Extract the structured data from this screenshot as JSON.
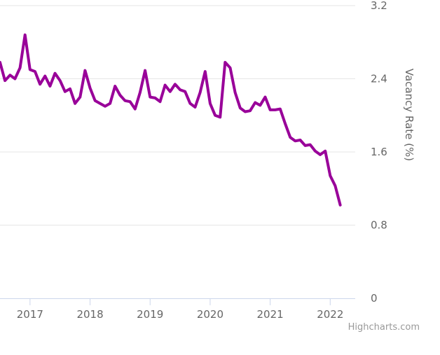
{
  "chart_data": {
    "type": "line",
    "ylabel": "Vacancy Rate (%)",
    "yticks": [
      "0",
      "0.8",
      "1.6",
      "2.4",
      "3.2"
    ],
    "ylim": [
      0,
      3.2
    ],
    "xticks": [
      "2017",
      "2018",
      "2019",
      "2020",
      "2021",
      "2022"
    ],
    "xlim": [
      "2016-07",
      "2022-06"
    ],
    "grid": true,
    "series": [
      {
        "color": "#990099",
        "x": [
          "2016-07",
          "2016-08",
          "2016-09",
          "2016-10",
          "2016-11",
          "2016-12",
          "2017-01",
          "2017-02",
          "2017-03",
          "2017-04",
          "2017-05",
          "2017-06",
          "2017-07",
          "2017-08",
          "2017-09",
          "2017-10",
          "2017-11",
          "2017-12",
          "2018-01",
          "2018-02",
          "2018-03",
          "2018-04",
          "2018-05",
          "2018-06",
          "2018-07",
          "2018-08",
          "2018-09",
          "2018-10",
          "2018-11",
          "2018-12",
          "2019-01",
          "2019-02",
          "2019-03",
          "2019-04",
          "2019-05",
          "2019-06",
          "2019-07",
          "2019-08",
          "2019-09",
          "2019-10",
          "2019-11",
          "2019-12",
          "2020-01",
          "2020-02",
          "2020-03",
          "2020-04",
          "2020-05",
          "2020-06",
          "2020-07",
          "2020-08",
          "2020-09",
          "2020-10",
          "2020-11",
          "2020-12",
          "2021-01",
          "2021-02",
          "2021-03",
          "2021-04",
          "2021-05",
          "2021-06",
          "2021-07",
          "2021-08",
          "2021-09",
          "2021-10",
          "2021-11",
          "2021-12",
          "2022-01",
          "2022-02",
          "2022-03"
        ],
        "values": [
          2.58,
          2.38,
          2.44,
          2.4,
          2.52,
          2.88,
          2.5,
          2.48,
          2.34,
          2.43,
          2.32,
          2.46,
          2.38,
          2.26,
          2.29,
          2.13,
          2.2,
          2.49,
          2.3,
          2.16,
          2.13,
          2.1,
          2.13,
          2.32,
          2.22,
          2.16,
          2.15,
          2.07,
          2.25,
          2.49,
          2.2,
          2.19,
          2.15,
          2.33,
          2.26,
          2.34,
          2.28,
          2.26,
          2.13,
          2.09,
          2.25,
          2.48,
          2.13,
          2.0,
          1.98,
          2.58,
          2.52,
          2.25,
          2.08,
          2.04,
          2.05,
          2.14,
          2.11,
          2.2,
          2.06,
          2.06,
          2.07,
          1.91,
          1.76,
          1.72,
          1.73,
          1.67,
          1.68,
          1.61,
          1.57,
          1.61,
          1.34,
          1.23,
          1.02
        ]
      }
    ]
  },
  "credit": "Highcharts.com"
}
